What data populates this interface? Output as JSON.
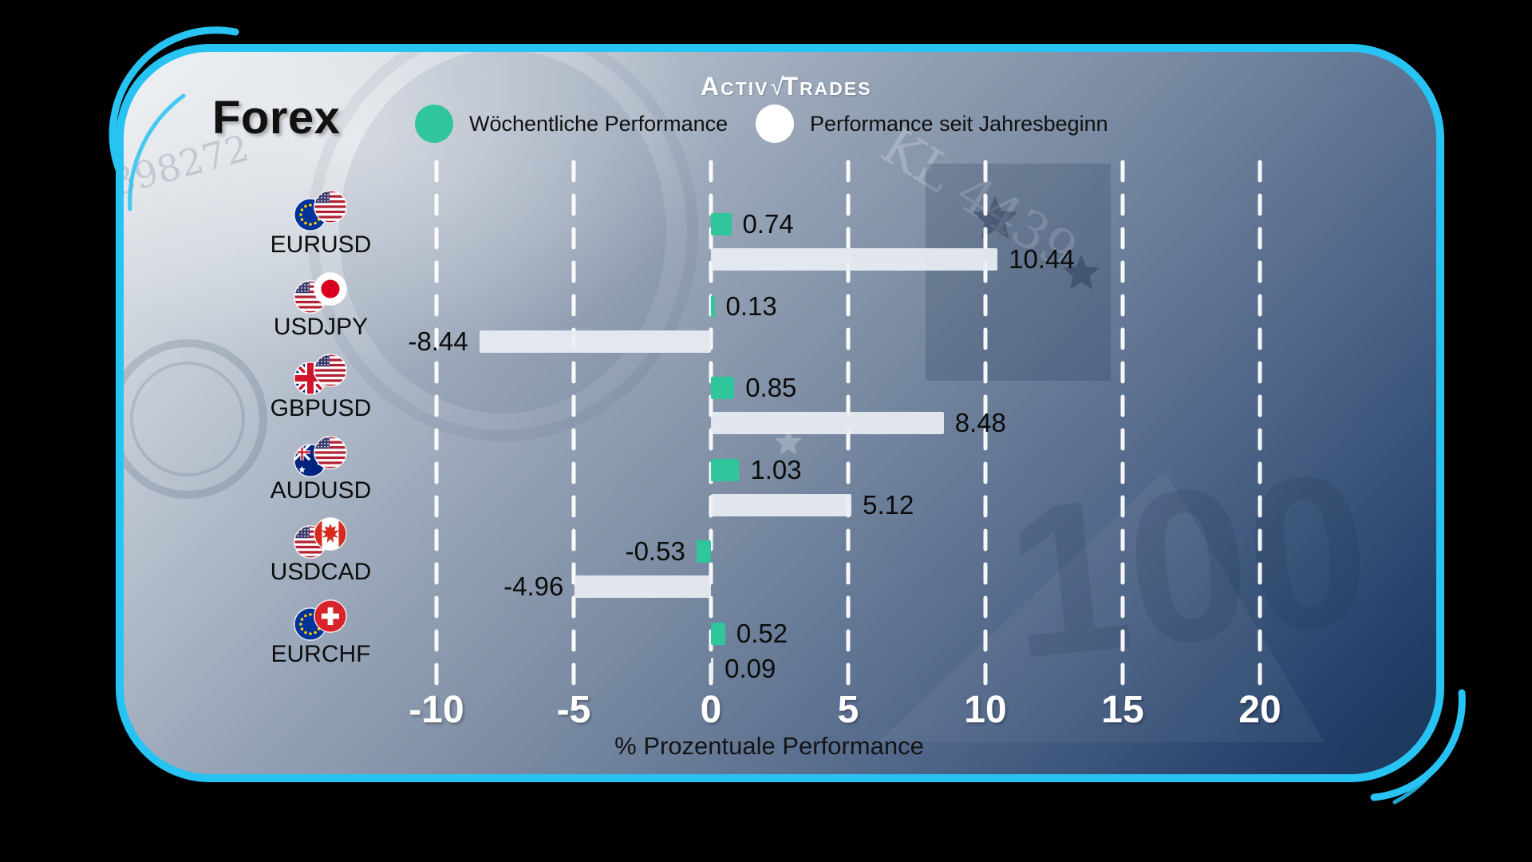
{
  "brand": {
    "part1": "A",
    "part2": "CTIV",
    "check": "√",
    "part3": "T",
    "part4": "RADES"
  },
  "header": {
    "title": "Forex"
  },
  "legend": {
    "weekly": {
      "label": "Wöchentliche Performance",
      "color": "#2fc69b"
    },
    "ytd": {
      "label": "Performance seit Jahresbeginn",
      "color": "#ffffff"
    }
  },
  "chart_data": {
    "type": "bar",
    "orientation": "horizontal",
    "title": "Forex",
    "categories": [
      "EURUSD",
      "USDJPY",
      "GBPUSD",
      "AUDUSD",
      "USDCAD",
      "EURCHF"
    ],
    "flags": [
      [
        "eu",
        "us"
      ],
      [
        "us",
        "jp"
      ],
      [
        "gb",
        "us"
      ],
      [
        "au",
        "us"
      ],
      [
        "us",
        "ca"
      ],
      [
        "eu",
        "ch"
      ]
    ],
    "series": [
      {
        "name": "Wöchentliche Performance",
        "color": "#2fc69b",
        "values": [
          0.74,
          0.13,
          0.85,
          1.03,
          -0.53,
          0.52
        ]
      },
      {
        "name": "Performance seit Jahresbeginn",
        "color": "#e8ecf2",
        "values": [
          10.44,
          -8.44,
          8.48,
          5.12,
          -4.96,
          0.09
        ]
      }
    ],
    "xlabel": "% Prozentuale Performance",
    "x_ticks": [
      -10,
      -5,
      0,
      5,
      10,
      15,
      20
    ],
    "xlim": [
      -12.5,
      23
    ],
    "grid": "dashed-vertical-white",
    "legend_position": "top"
  },
  "background_text": {
    "serial_top_right": "KL 4439",
    "serial_left": "398272",
    "watermark": "100"
  },
  "accent_color": "#27c3f2"
}
